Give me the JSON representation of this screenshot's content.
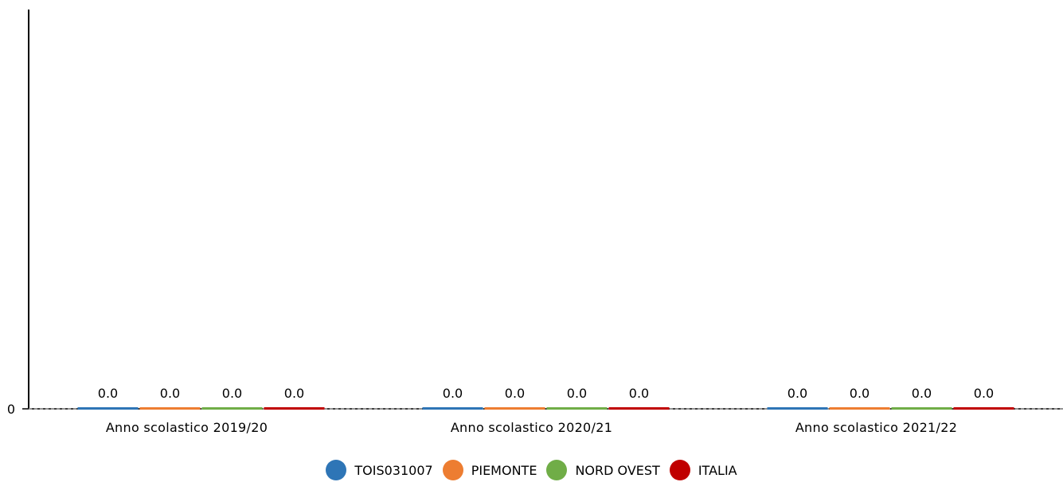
{
  "chart_data": {
    "type": "bar",
    "categories": [
      "Anno scolastico 2019/20",
      "Anno scolastico 2020/21",
      "Anno scolastico 2021/22"
    ],
    "series": [
      {
        "name": "TOIS031007",
        "color": "#2e75b6",
        "values": [
          0.0,
          0.0,
          0.0
        ],
        "labels": [
          "0.0",
          "0.0",
          "0.0"
        ]
      },
      {
        "name": "PIEMONTE",
        "color": "#ed7d31",
        "values": [
          0.0,
          0.0,
          0.0
        ],
        "labels": [
          "0.0",
          "0.0",
          "0.0"
        ]
      },
      {
        "name": "NORD OVEST",
        "color": "#70ad47",
        "values": [
          0.0,
          0.0,
          0.0
        ],
        "labels": [
          "0.0",
          "0.0",
          "0.0"
        ]
      },
      {
        "name": "ITALIA",
        "color": "#c00000",
        "values": [
          0.0,
          0.0,
          0.0
        ],
        "labels": [
          "0.0",
          "0.0",
          "0.0"
        ]
      }
    ],
    "y_ticks": [
      "0"
    ],
    "ylim": [
      0,
      1
    ],
    "legend_position": "bottom"
  }
}
